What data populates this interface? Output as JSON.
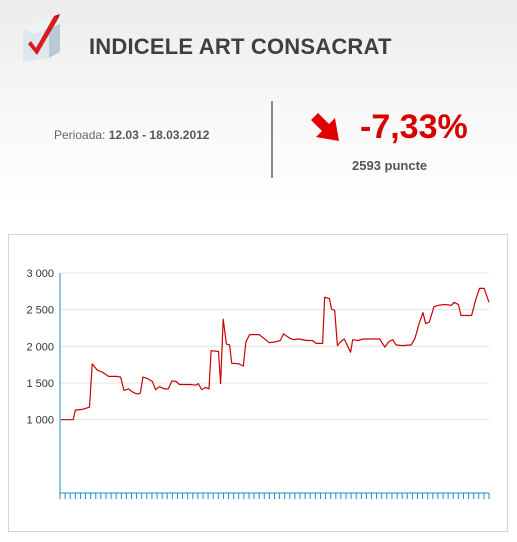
{
  "header": {
    "title": "INDICELE ART CONSACRAT",
    "logo_icon": "rising-chart-check-icon"
  },
  "summary": {
    "period_label": "Perioada:",
    "period_value": "12.03 - 18.03.2012",
    "change": "-7,33%",
    "change_direction": "down",
    "change_icon": "arrow-down-right-icon",
    "points": "2593 puncte"
  },
  "colors": {
    "line": "#cc0000",
    "change": "#d90000",
    "axis": "#1a8fc4",
    "grid": "#e3e3e3"
  },
  "chart_data": {
    "type": "line",
    "title": "",
    "xlabel": "",
    "ylabel": "",
    "ylim": [
      0,
      3000
    ],
    "y_ticks": [
      1000,
      1500,
      2000,
      2500,
      3000
    ],
    "y_tick_labels": [
      "1 000",
      "1 500",
      "2 000",
      "2 500",
      "3 000"
    ],
    "x_tick_count": 84,
    "grid": true,
    "legend": "none",
    "series": [
      {
        "values": [
          {
            "x": 0,
            "y": 1000
          },
          {
            "x": 2.3,
            "y": 1000
          },
          {
            "x": 2.7,
            "y": 1130
          },
          {
            "x": 4,
            "y": 1140
          },
          {
            "x": 5.4,
            "y": 1170
          },
          {
            "x": 5.9,
            "y": 1760
          },
          {
            "x": 6.8,
            "y": 1680
          },
          {
            "x": 8,
            "y": 1640
          },
          {
            "x": 9,
            "y": 1590
          },
          {
            "x": 10.5,
            "y": 1590
          },
          {
            "x": 11.3,
            "y": 1580
          },
          {
            "x": 11.9,
            "y": 1400
          },
          {
            "x": 12.8,
            "y": 1420
          },
          {
            "x": 13.5,
            "y": 1380
          },
          {
            "x": 14.3,
            "y": 1350
          },
          {
            "x": 15,
            "y": 1360
          },
          {
            "x": 15.5,
            "y": 1580
          },
          {
            "x": 16.4,
            "y": 1560
          },
          {
            "x": 17.3,
            "y": 1520
          },
          {
            "x": 17.9,
            "y": 1410
          },
          {
            "x": 18.6,
            "y": 1450
          },
          {
            "x": 19.6,
            "y": 1420
          },
          {
            "x": 20.3,
            "y": 1420
          },
          {
            "x": 21,
            "y": 1530
          },
          {
            "x": 21.8,
            "y": 1520
          },
          {
            "x": 22.4,
            "y": 1480
          },
          {
            "x": 24.5,
            "y": 1480
          },
          {
            "x": 25.5,
            "y": 1470
          },
          {
            "x": 26,
            "y": 1490
          },
          {
            "x": 26.6,
            "y": 1410
          },
          {
            "x": 27.4,
            "y": 1440
          },
          {
            "x": 28,
            "y": 1420
          },
          {
            "x": 28.4,
            "y": 1940
          },
          {
            "x": 29.8,
            "y": 1930
          },
          {
            "x": 30.2,
            "y": 1490
          },
          {
            "x": 30.7,
            "y": 2370
          },
          {
            "x": 31.3,
            "y": 2030
          },
          {
            "x": 31.9,
            "y": 2020
          },
          {
            "x": 32.3,
            "y": 1770
          },
          {
            "x": 33.7,
            "y": 1760
          },
          {
            "x": 34.5,
            "y": 1730
          },
          {
            "x": 35,
            "y": 2060
          },
          {
            "x": 35.7,
            "y": 2160
          },
          {
            "x": 37.5,
            "y": 2160
          },
          {
            "x": 38.4,
            "y": 2110
          },
          {
            "x": 39.4,
            "y": 2050
          },
          {
            "x": 40.6,
            "y": 2060
          },
          {
            "x": 41.5,
            "y": 2080
          },
          {
            "x": 42.1,
            "y": 2170
          },
          {
            "x": 43.3,
            "y": 2110
          },
          {
            "x": 44,
            "y": 2090
          },
          {
            "x": 45,
            "y": 2100
          },
          {
            "x": 46.5,
            "y": 2080
          },
          {
            "x": 47.6,
            "y": 2080
          },
          {
            "x": 48.3,
            "y": 2040
          },
          {
            "x": 49.5,
            "y": 2040
          },
          {
            "x": 49.9,
            "y": 2670
          },
          {
            "x": 50.8,
            "y": 2650
          },
          {
            "x": 51.2,
            "y": 2510
          },
          {
            "x": 51.8,
            "y": 2490
          },
          {
            "x": 52.3,
            "y": 2010
          },
          {
            "x": 52.9,
            "y": 2060
          },
          {
            "x": 53.6,
            "y": 2100
          },
          {
            "x": 54.2,
            "y": 2010
          },
          {
            "x": 54.8,
            "y": 1920
          },
          {
            "x": 55.2,
            "y": 2090
          },
          {
            "x": 56.2,
            "y": 2080
          },
          {
            "x": 57.2,
            "y": 2100
          },
          {
            "x": 60.3,
            "y": 2100
          },
          {
            "x": 61.3,
            "y": 1990
          },
          {
            "x": 62,
            "y": 2060
          },
          {
            "x": 62.8,
            "y": 2090
          },
          {
            "x": 63.4,
            "y": 2020
          },
          {
            "x": 64.6,
            "y": 2010
          },
          {
            "x": 66.3,
            "y": 2020
          },
          {
            "x": 67,
            "y": 2110
          },
          {
            "x": 67.8,
            "y": 2320
          },
          {
            "x": 68.5,
            "y": 2460
          },
          {
            "x": 69,
            "y": 2310
          },
          {
            "x": 69.7,
            "y": 2330
          },
          {
            "x": 70.6,
            "y": 2540
          },
          {
            "x": 71.4,
            "y": 2560
          },
          {
            "x": 72.7,
            "y": 2570
          },
          {
            "x": 73.9,
            "y": 2560
          },
          {
            "x": 74.4,
            "y": 2600
          },
          {
            "x": 75.2,
            "y": 2570
          },
          {
            "x": 75.7,
            "y": 2420
          },
          {
            "x": 77.7,
            "y": 2420
          },
          {
            "x": 78.5,
            "y": 2640
          },
          {
            "x": 79.2,
            "y": 2790
          },
          {
            "x": 80.1,
            "y": 2790
          },
          {
            "x": 81,
            "y": 2600
          }
        ]
      }
    ]
  }
}
